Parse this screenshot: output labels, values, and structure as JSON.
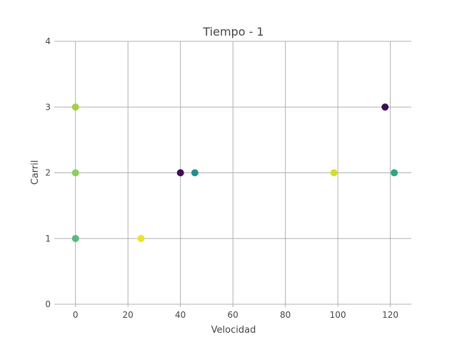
{
  "chart_data": {
    "type": "scatter",
    "title": "Tiempo -  1",
    "xlabel": "Velocidad",
    "ylabel": "Carril",
    "xlim": [
      -7,
      128
    ],
    "ylim": [
      0,
      4
    ],
    "x_ticks": [
      0,
      20,
      40,
      60,
      80,
      100,
      120
    ],
    "y_ticks": [
      0,
      1,
      2,
      3,
      4
    ],
    "grid": true,
    "colormap": "viridis",
    "points": [
      {
        "x": 0,
        "y": 3,
        "color": "#a5d046"
      },
      {
        "x": 0,
        "y": 2,
        "color": "#8ccf5a"
      },
      {
        "x": 0,
        "y": 1,
        "color": "#5ab97c"
      },
      {
        "x": 25,
        "y": 1,
        "color": "#f0e22a"
      },
      {
        "x": 40,
        "y": 2,
        "color": "#440a56"
      },
      {
        "x": 45.5,
        "y": 2,
        "color": "#238f8c"
      },
      {
        "x": 98.5,
        "y": 2,
        "color": "#d6df26"
      },
      {
        "x": 118,
        "y": 3,
        "color": "#3b0f51"
      },
      {
        "x": 121.5,
        "y": 2,
        "color": "#2aa87f"
      }
    ]
  }
}
